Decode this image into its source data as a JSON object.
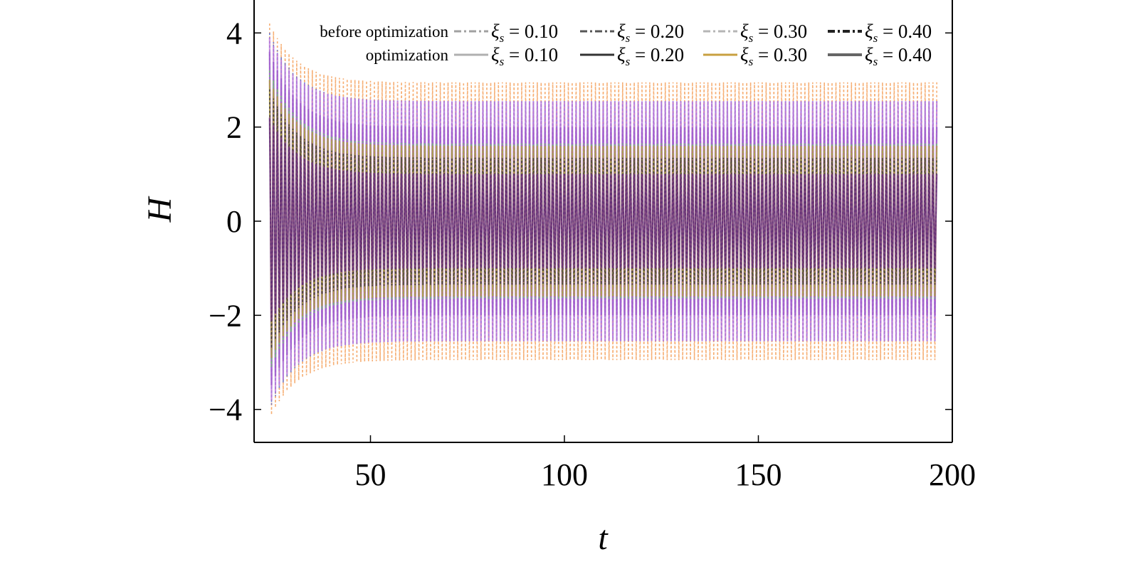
{
  "chart_data": {
    "type": "line",
    "xlabel": "t",
    "ylabel": "H",
    "xlim": [
      20,
      200
    ],
    "ylim": [
      -4.7,
      4.7
    ],
    "xticks": [
      50,
      100,
      150,
      200
    ],
    "yticks": [
      -4,
      -2,
      0,
      2,
      4
    ],
    "xtick_labels": [
      "50",
      "100",
      "150",
      "200"
    ],
    "ytick_labels": [
      "−4",
      "−2",
      "0",
      "2",
      "4"
    ],
    "grid": false,
    "legend_position": "top",
    "legend": {
      "rows": [
        {
          "label": "before optimization",
          "entries": [
            {
              "symbol": "ξ",
              "sub": "s",
              "text": " = 0.10",
              "style": "dash-dot",
              "color": "#a0a0a0"
            },
            {
              "symbol": "ξ",
              "sub": "s",
              "text": " = 0.20",
              "style": "dash-dot",
              "color": "#555555"
            },
            {
              "symbol": "ξ",
              "sub": "s",
              "text": " = 0.30",
              "style": "dash-dot",
              "color": "#b5b5b5"
            },
            {
              "symbol": "ξ",
              "sub": "s",
              "text": " = 0.40",
              "style": "dash-dot",
              "color": "#222222"
            }
          ]
        },
        {
          "label": "optimization",
          "entries": [
            {
              "symbol": "ξ",
              "sub": "s",
              "text": " = 0.10",
              "style": "solid",
              "color": "#b0b0b0"
            },
            {
              "symbol": "ξ",
              "sub": "s",
              "text": " = 0.20",
              "style": "solid",
              "color": "#333333"
            },
            {
              "symbol": "ξ",
              "sub": "s",
              "text": " = 0.30",
              "style": "solid",
              "color": "#c8a040"
            },
            {
              "symbol": "ξ",
              "sub": "s",
              "text": " = 0.40",
              "style": "solid",
              "color": "#666666"
            }
          ]
        }
      ]
    },
    "series": [
      {
        "group": "before optimization",
        "xi_s": 0.1,
        "color": "#f5a05a",
        "steady_amplitude": 2.95,
        "initial_peak": 4.2
      },
      {
        "group": "before optimization",
        "xi_s": 0.2,
        "color": "#5b6fd1",
        "steady_amplitude": 2.55,
        "initial_peak": 4.0
      },
      {
        "group": "before optimization",
        "xi_s": 0.3,
        "color": "#6fcf6a",
        "steady_amplitude": 1.65,
        "initial_peak": 3.2
      },
      {
        "group": "before optimization",
        "xi_s": 0.4,
        "color": "#3a3a3a",
        "steady_amplitude": 1.35,
        "initial_peak": 2.8
      },
      {
        "group": "optimization",
        "xi_s": 0.1,
        "color": "#c07be0",
        "steady_amplitude": 2.55,
        "initial_peak": 3.9
      },
      {
        "group": "optimization",
        "xi_s": 0.2,
        "color": "#9b59c9",
        "steady_amplitude": 2.0,
        "initial_peak": 3.6
      },
      {
        "group": "optimization",
        "xi_s": 0.3,
        "color": "#b99a3e",
        "steady_amplitude": 1.6,
        "initial_peak": 3.0
      },
      {
        "group": "optimization",
        "xi_s": 0.4,
        "color": "#6a2a8a",
        "steady_amplitude": 1.0,
        "initial_peak": 2.2
      }
    ],
    "time_range": [
      24,
      196
    ]
  }
}
